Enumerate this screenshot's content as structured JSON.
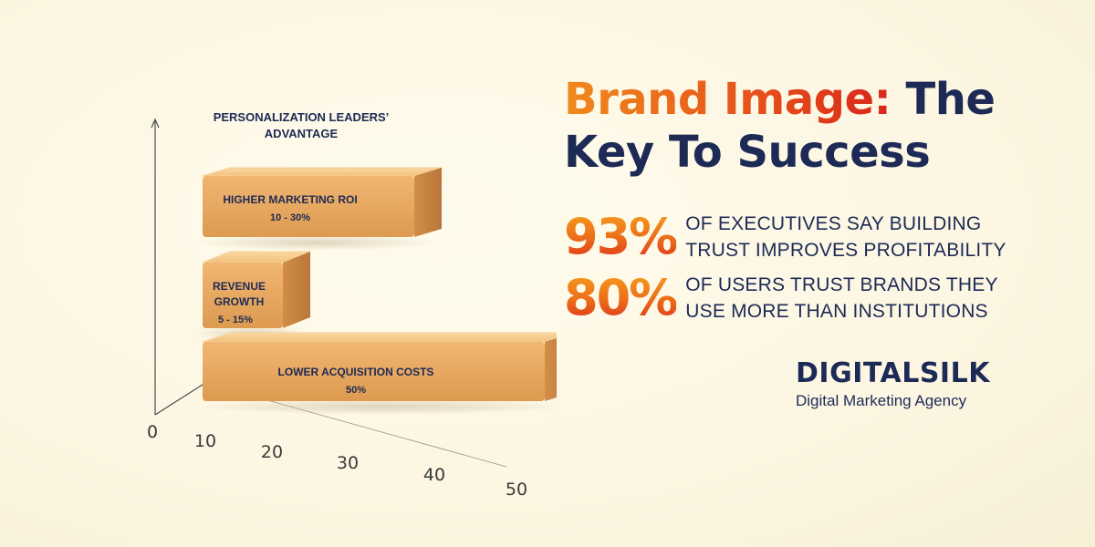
{
  "headline": {
    "accent": "Brand Image:",
    "rest_line1": "The",
    "line2": "Key To Success"
  },
  "stats": [
    {
      "number": "93%",
      "line1": "OF EXECUTIVES SAY BUILDING",
      "line2": "TRUST IMPROVES PROFITABILITY"
    },
    {
      "number": "80%",
      "line1": "OF USERS TRUST BRANDS THEY",
      "line2": "USE MORE THAN INSTITUTIONS"
    }
  ],
  "brand": {
    "logo_part1": "DIGITAL",
    "logo_part2": "SILK",
    "subtitle": "Digital Marketing Agency"
  },
  "colors": {
    "navy": "#1d2a55",
    "orange": "#f08a1c",
    "red": "#d8261c",
    "block_face": "#e9a55a",
    "block_top": "#f6c987",
    "block_side": "#c98442",
    "background": "#fcf6e2"
  },
  "chart_data": {
    "type": "bar",
    "title": "PERSONALIZATION LEADERS’ ADVANTAGE",
    "orientation": "horizontal",
    "style": "3d-blocks",
    "xlim": [
      0,
      50
    ],
    "x_ticks": [
      "0",
      "10",
      "20",
      "30",
      "40",
      "50"
    ],
    "bars": [
      {
        "label": "HIGHER MARKETING ROI",
        "value_label": "10 - 30%",
        "start": 10,
        "end": 30
      },
      {
        "label": "REVENUE GROWTH",
        "label_lines": [
          "REVENUE",
          "GROWTH"
        ],
        "value_label": "5 - 15%",
        "start": 5,
        "end": 15
      },
      {
        "label": "LOWER ACQUISITION COSTS",
        "value_label": "50%",
        "start": 0,
        "end": 50
      }
    ]
  }
}
